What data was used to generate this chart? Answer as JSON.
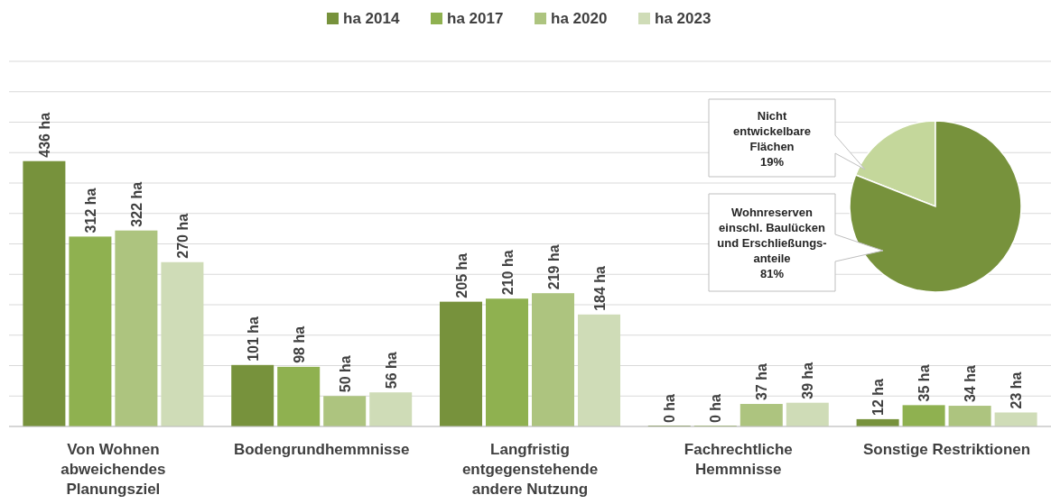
{
  "chart_data": [
    {
      "type": "bar",
      "categories": [
        "Von Wohnen\nabweichendes\nPlanungsziel",
        "Bodengrundhemmnisse",
        "Langfristig\nentgegenstehende\nandere Nutzung",
        "Fachrechtliche\nHemmnisse",
        "Sonstige Restriktionen"
      ],
      "series": [
        {
          "name": "ha 2014",
          "color": "#77923c",
          "values": [
            436,
            101,
            205,
            0,
            12
          ],
          "value_labels": [
            "436 ha",
            "101 ha",
            "205 ha",
            "0 ha",
            "12 ha"
          ]
        },
        {
          "name": "ha 2017",
          "color": "#8fb150",
          "values": [
            312,
            98,
            210,
            0,
            35
          ],
          "value_labels": [
            "312 ha",
            "98 ha",
            "210 ha",
            "0 ha",
            "35 ha"
          ]
        },
        {
          "name": "ha 2020",
          "color": "#adc47f",
          "values": [
            322,
            50,
            219,
            37,
            34
          ],
          "value_labels": [
            "322 ha",
            "50 ha",
            "219 ha",
            "37 ha",
            "34 ha"
          ]
        },
        {
          "name": "ha 2023",
          "color": "#cfdcb7",
          "values": [
            270,
            56,
            184,
            39,
            23
          ],
          "value_labels": [
            "270 ha",
            "56 ha",
            "184 ha",
            "39 ha",
            "23 ha"
          ]
        }
      ],
      "ylim": [
        0,
        600
      ],
      "yticks": [
        {
          "value": 0,
          "label": null
        },
        {
          "value": 50,
          "label": null
        },
        {
          "value": 100,
          "label": null
        },
        {
          "value": 150,
          "label": null
        },
        {
          "value": 200,
          "label": null
        },
        {
          "value": 250,
          "label": null
        },
        {
          "value": 300,
          "label": null
        },
        {
          "value": 350,
          "label": null
        },
        {
          "value": 400,
          "label": null
        },
        {
          "value": 450,
          "label": null
        },
        {
          "value": 500,
          "label": null
        },
        {
          "value": 550,
          "label": null
        },
        {
          "value": 600,
          "label": null
        }
      ],
      "tick_labels": "x",
      "grid": "y",
      "legend": "top"
    },
    {
      "type": "pie",
      "categories": [
        "Nicht\nentwickelbare\nFlächen",
        "Wohnreserven\neinschl. Baulücken\nund Erschließungs-\nanteile"
      ],
      "values": [
        19,
        81
      ],
      "colors": [
        "#c4d79b",
        "#77923c"
      ],
      "value_labels": [
        "19%",
        "81%"
      ]
    }
  ]
}
